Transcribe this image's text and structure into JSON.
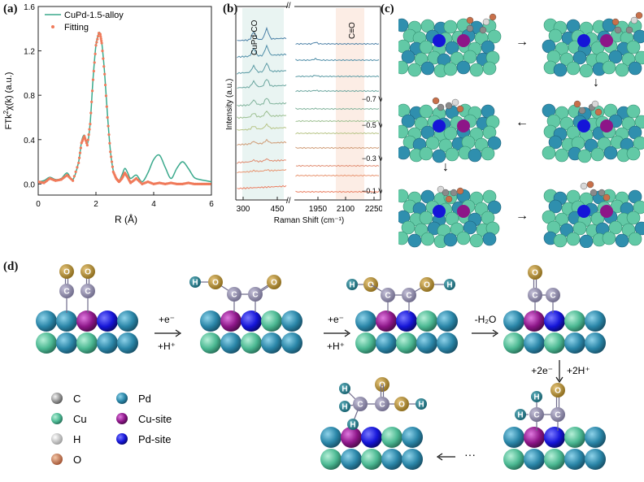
{
  "panels": {
    "a": {
      "label": "(a)"
    },
    "b": {
      "label": "(b)"
    },
    "c": {
      "label": "(c)"
    },
    "d": {
      "label": "(d)"
    }
  },
  "chart_a": {
    "type": "line",
    "ylabel_main": "FTk",
    "ylabel_sup": "2",
    "ylabel_rest": "χ(k) (a.u.)",
    "xlabel": "R (Å)",
    "xlim": [
      0,
      6
    ],
    "ylim": [
      -0.1,
      1.6
    ],
    "xticks": [
      "0",
      "2",
      "4",
      "6"
    ],
    "yticks": [
      "0.0",
      "0.4",
      "0.8",
      "1.2",
      "1.6"
    ],
    "legend": [
      {
        "name": "CuPd-1.5-alloy",
        "color": "#3aa98c"
      },
      {
        "name": "Fitting",
        "color": "#f07a5a"
      }
    ],
    "series_alloy": {
      "x": [
        0,
        0.2,
        0.4,
        0.6,
        0.8,
        1.0,
        1.2,
        1.4,
        1.5,
        1.6,
        1.7,
        1.8,
        1.9,
        2.0,
        2.1,
        2.15,
        2.2,
        2.3,
        2.4,
        2.5,
        2.6,
        2.7,
        2.8,
        2.9,
        3.0,
        3.1,
        3.2,
        3.4,
        3.6,
        3.8,
        4.0,
        4.2,
        4.4,
        4.6,
        4.8,
        5.0,
        5.2,
        5.4,
        5.6,
        5.8,
        6.0
      ],
      "y": [
        0.02,
        0.03,
        0.06,
        0.04,
        0.05,
        0.1,
        0.04,
        0.2,
        0.38,
        0.44,
        0.36,
        0.55,
        0.95,
        1.25,
        1.36,
        1.35,
        1.28,
        1.0,
        0.62,
        0.3,
        0.12,
        0.06,
        0.03,
        0.08,
        0.14,
        0.1,
        0.05,
        0.08,
        0.02,
        0.1,
        0.22,
        0.26,
        0.15,
        0.05,
        0.14,
        0.2,
        0.14,
        0.06,
        0.04,
        0.03,
        0.02
      ]
    },
    "series_fit": {
      "x": [
        0,
        0.2,
        0.4,
        0.6,
        0.8,
        1.0,
        1.2,
        1.4,
        1.5,
        1.6,
        1.7,
        1.8,
        1.9,
        2.0,
        2.1,
        2.15,
        2.2,
        2.3,
        2.4,
        2.5,
        2.6,
        2.7,
        2.8,
        2.9,
        3.0,
        3.1,
        3.2,
        3.4,
        3.6,
        3.8,
        4.0,
        4.2,
        4.4,
        4.6,
        4.8,
        5.0,
        5.2,
        5.4,
        5.6,
        5.8,
        6.0
      ],
      "y": [
        0.02,
        0.01,
        0.05,
        0.03,
        0.04,
        0.08,
        0.03,
        0.19,
        0.37,
        0.43,
        0.35,
        0.54,
        0.94,
        1.25,
        1.36,
        1.35,
        1.27,
        0.99,
        0.6,
        0.29,
        0.11,
        0.05,
        0.02,
        0.05,
        0.1,
        0.06,
        0.01,
        0.05,
        0.0,
        0.02,
        0.0,
        0.01,
        0.0,
        0.01,
        0.0,
        0.0,
        0.01,
        0.0,
        0.0,
        0.0,
        0.0
      ]
    }
  },
  "chart_b": {
    "ylabel": "Intensity (a.u.)",
    "xlabel": "Raman Shift (cm⁻¹)",
    "band1_label": "CuPd-CO",
    "band2_label": "C≡O",
    "xticks_left": [
      "300",
      "450"
    ],
    "xticks_right": [
      "1950",
      "2100",
      "2250"
    ],
    "potentials": [
      "−0.7 V",
      "−0.5 V",
      "−0.3 V",
      "−0.1 V"
    ],
    "trace_colors": [
      "#4a7fa6",
      "#4f8ea8",
      "#5a9aa4",
      "#6aa59e",
      "#7fb29a",
      "#9cbf90",
      "#b7c486",
      "#cf9a74",
      "#e08a6e",
      "#e8946f",
      "#ea7f62"
    ]
  },
  "panel_c": {
    "arrows": [
      "→",
      "↓",
      "←",
      "↓",
      "→"
    ]
  },
  "scheme_d": {
    "step1_top": "+e⁻",
    "step1_bottom": "+H⁺",
    "step2_top": "+e⁻",
    "step2_bottom": "+H⁺",
    "step3_top": "-H₂O",
    "step4_left": "+2e⁻",
    "step4_right": "+2H⁺",
    "ellipsis": "···",
    "atom_C": "C",
    "atom_O": "O",
    "atom_H": "H",
    "legend": [
      {
        "symbol": "C",
        "color": "#7d7d7d"
      },
      {
        "symbol": "Cu",
        "color": "#3da384"
      },
      {
        "symbol": "H",
        "color": "#d8d8d8"
      },
      {
        "symbol": "O",
        "color": "#c8704a"
      },
      {
        "symbol": "Pd",
        "color": "#1f6e8a"
      },
      {
        "symbol": "Cu-site",
        "color": "#8d1688"
      },
      {
        "symbol": "Pd-site",
        "color": "#1515d8"
      }
    ]
  }
}
